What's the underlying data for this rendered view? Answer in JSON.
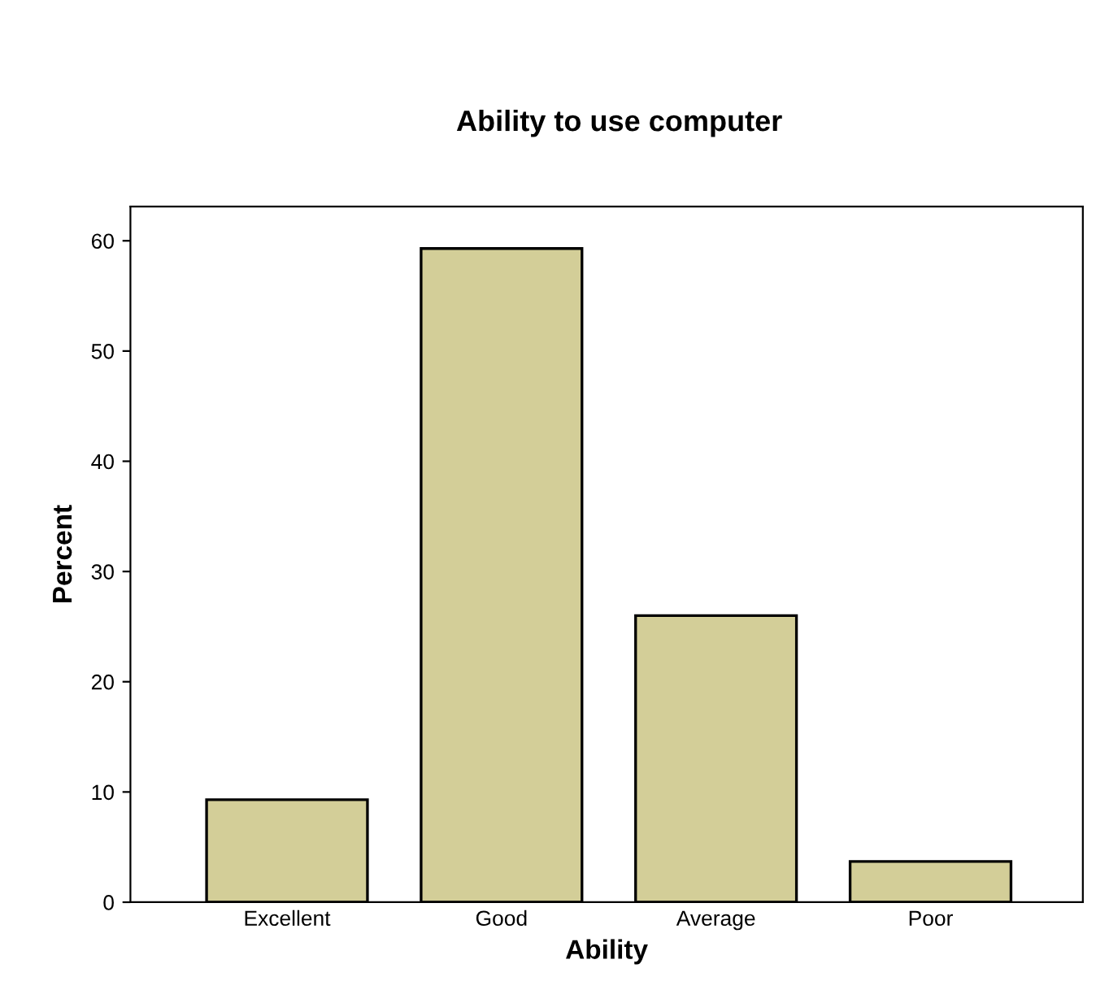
{
  "chart_data": {
    "type": "bar",
    "title": "Ability to use computer",
    "xlabel": "Ability",
    "ylabel": "Percent",
    "categories": [
      "Excellent",
      "Good",
      "Average",
      "Poor"
    ],
    "values": [
      9.3,
      59.3,
      26.0,
      3.7
    ],
    "color": "#d3ce98",
    "ylim": [
      0,
      63.1
    ],
    "yticks": [
      0,
      10,
      20,
      30,
      40,
      50,
      60
    ],
    "grid": false,
    "legend": false
  }
}
